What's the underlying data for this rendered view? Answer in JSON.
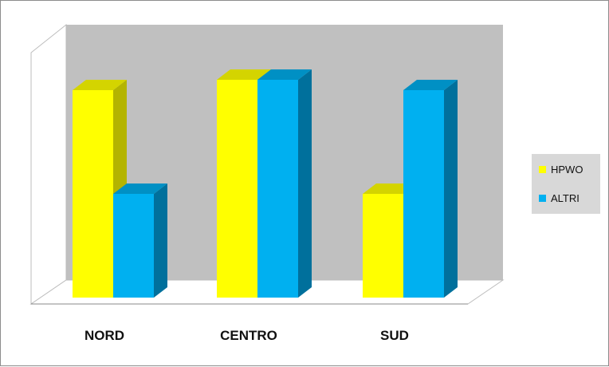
{
  "chart_data": {
    "type": "bar",
    "categories": [
      "NORD",
      "CENTRO",
      "SUD"
    ],
    "series": [
      {
        "name": "HPWO",
        "values": [
          100,
          105,
          50
        ]
      },
      {
        "name": "ALTRI",
        "values": [
          50,
          105,
          100
        ]
      }
    ],
    "ylim": [
      0,
      110
    ],
    "legend_position": "right",
    "colors": {
      "HPWO": {
        "front": "#ffff00",
        "top": "#d4d400",
        "side": "#b4b400"
      },
      "ALTRI": {
        "front": "#00b0f0",
        "top": "#0090c4",
        "side": "#00709c"
      },
      "back_wall": "#c0c0c0",
      "floor": "#ffffff"
    }
  }
}
